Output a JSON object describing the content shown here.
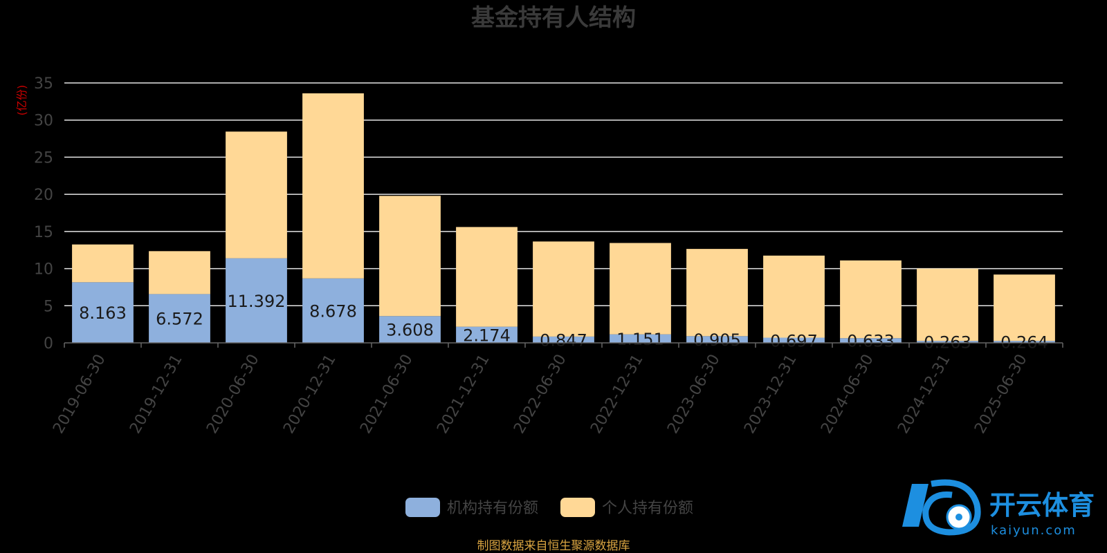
{
  "chart_data": {
    "type": "bar",
    "stacked": true,
    "title": "基金持有人结构",
    "ylabel": "(亿份)",
    "ylim": [
      0,
      35
    ],
    "yticks": [
      0,
      5,
      10,
      15,
      20,
      25,
      30,
      35
    ],
    "grid": true,
    "legend_position": "bottom",
    "categories": [
      "2019-06-30",
      "2019-12-31",
      "2020-06-30",
      "2020-12-31",
      "2021-06-30",
      "2021-12-31",
      "2022-06-30",
      "2022-12-31",
      "2023-06-30",
      "2023-12-31",
      "2024-06-30",
      "2024-12-31",
      "2025-06-30"
    ],
    "series": [
      {
        "name": "机构持有份额",
        "color": "#8eb0dd",
        "values": [
          8.163,
          6.572,
          11.392,
          8.678,
          3.608,
          2.174,
          0.847,
          1.151,
          0.905,
          0.697,
          0.633,
          0.263,
          0.264
        ],
        "labels": [
          "8.163",
          "6.572",
          "11.392",
          "8.678",
          "3.608",
          "2.174",
          "0.847",
          "1.151",
          "0.905",
          "0.697",
          "0.633",
          "0.263",
          "0.264"
        ]
      },
      {
        "name": "个人持有份额",
        "color": "#ffd896",
        "values": [
          5.087,
          5.778,
          17.058,
          24.922,
          16.192,
          13.426,
          12.803,
          12.299,
          11.745,
          11.053,
          10.467,
          9.737,
          8.936
        ]
      }
    ],
    "source": "制图数据来自恒生聚源数据库"
  },
  "watermark": {
    "name": "开云体育",
    "domain": "kaiyun.com",
    "color": "#1d8fe0"
  }
}
